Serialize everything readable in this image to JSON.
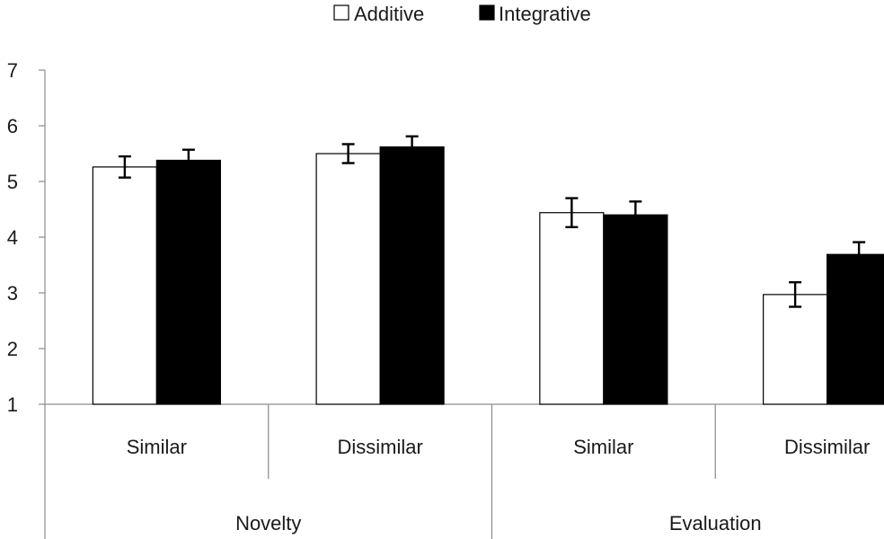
{
  "chart_data": {
    "type": "bar",
    "groups": [
      {
        "label": "Novelty",
        "categories": [
          "Similar",
          "Dissimilar"
        ]
      },
      {
        "label": "Evaluation",
        "categories": [
          "Similar",
          "Dissimilar"
        ]
      }
    ],
    "categories": [
      "Similar",
      "Dissimilar",
      "Similar",
      "Dissimilar"
    ],
    "series": [
      {
        "name": "Additive",
        "color": "#ffffff",
        "values": [
          5.26,
          5.5,
          4.44,
          2.97
        ],
        "errors": [
          0.19,
          0.17,
          0.26,
          0.22
        ]
      },
      {
        "name": "Integrative",
        "color": "#000000",
        "values": [
          5.38,
          5.62,
          4.4,
          3.69
        ],
        "errors": [
          0.19,
          0.19,
          0.24,
          0.22
        ]
      }
    ],
    "ylim": [
      1,
      7
    ],
    "yticks": [
      1,
      2,
      3,
      4,
      5,
      6,
      7
    ],
    "grid": false,
    "legend": "top-center",
    "title": "",
    "xlabel": "",
    "ylabel": ""
  }
}
